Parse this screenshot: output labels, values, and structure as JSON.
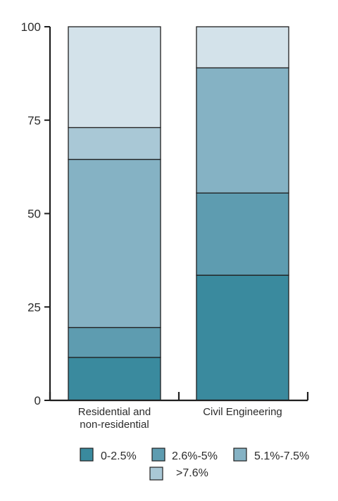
{
  "chart_data": {
    "type": "bar",
    "stacked": true,
    "categories": [
      "Residential and non-residential",
      "Civil Engineering"
    ],
    "category_label_lines": [
      [
        "Residential and",
        "non-residential"
      ],
      [
        "Civil Engineering"
      ]
    ],
    "series": [
      {
        "name": "0-2.5%",
        "color": "#3a8a9e",
        "values": [
          11.5,
          33.5
        ]
      },
      {
        "name": "2.6%-5%",
        "color": "#5e9cb0",
        "values": [
          8.0,
          22.0
        ]
      },
      {
        "name": "5.1%-7.5%",
        "color": "#85b2c4",
        "values": [
          45.0,
          33.5
        ]
      },
      {
        "name": ">7.6%",
        "color": "#a9c8d6",
        "values": [
          8.5,
          0
        ]
      },
      {
        "name": "",
        "color": "#d3e2ea",
        "values": [
          27.0,
          11.0
        ]
      }
    ],
    "yticks": [
      "0",
      "25",
      "50",
      "75",
      "100"
    ],
    "ylim": [
      0,
      100
    ],
    "grid": false,
    "legend_position": "bottom",
    "legend_items": [
      {
        "name": "0-2.5%",
        "color": "#3a8a9e"
      },
      {
        "name": "2.6%-5%",
        "color": "#5e9cb0"
      },
      {
        "name": "5.1%-7.5%",
        "color": "#85b2c4"
      },
      {
        "name": ">7.6%",
        "color": "#a9c8d6"
      }
    ]
  }
}
